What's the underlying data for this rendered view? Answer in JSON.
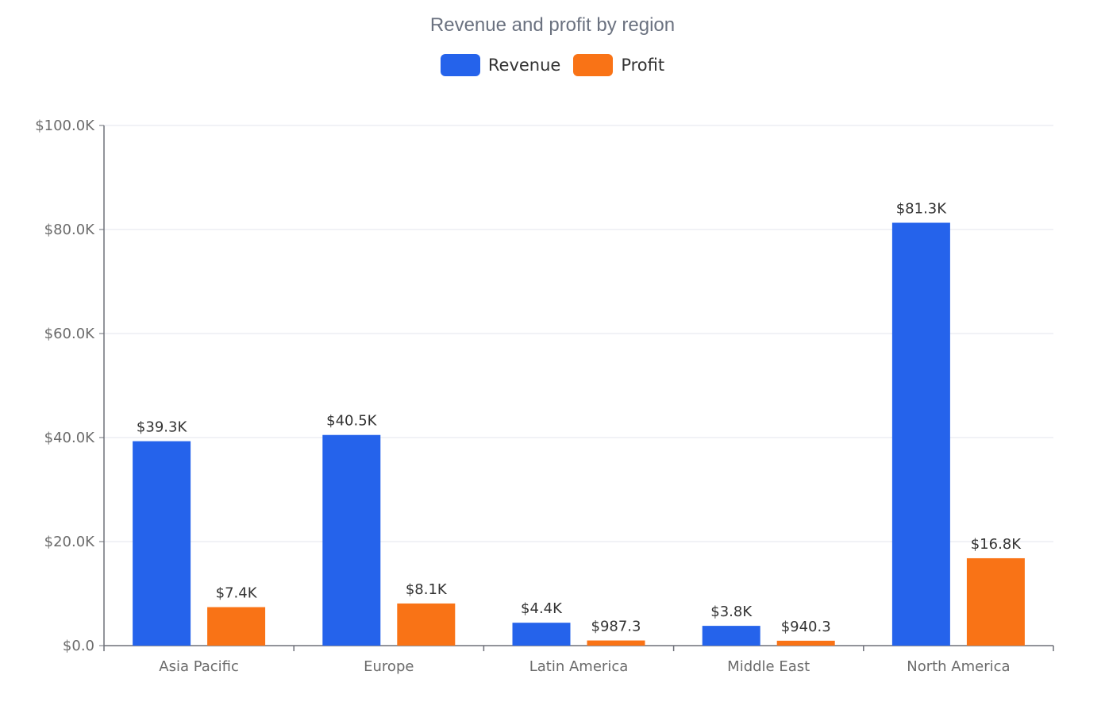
{
  "chart_data": {
    "type": "bar",
    "title": "Revenue and profit by region",
    "categories": [
      "Asia Pacific",
      "Europe",
      "Latin America",
      "Middle East",
      "North America"
    ],
    "series": [
      {
        "name": "Revenue",
        "color": "#2563eb",
        "values": [
          39300,
          40500,
          4400,
          3800,
          81300
        ],
        "labels": [
          "$39.3K",
          "$40.5K",
          "$4.4K",
          "$3.8K",
          "$81.3K"
        ]
      },
      {
        "name": "Profit",
        "color": "#f97316",
        "values": [
          7400,
          8100,
          987.3,
          940.3,
          16800
        ],
        "labels": [
          "$7.4K",
          "$8.1K",
          "$987.3",
          "$940.3",
          "$16.8K"
        ]
      }
    ],
    "ylim": [
      0,
      100000
    ],
    "yticks": [
      0,
      20000,
      40000,
      60000,
      80000,
      100000
    ],
    "ytick_labels": [
      "$0.0",
      "$20.0K",
      "$40.0K",
      "$60.0K",
      "$80.0K",
      "$100.0K"
    ],
    "xlabel": "",
    "ylabel": "",
    "grid": true,
    "legend_position": "top-center"
  }
}
